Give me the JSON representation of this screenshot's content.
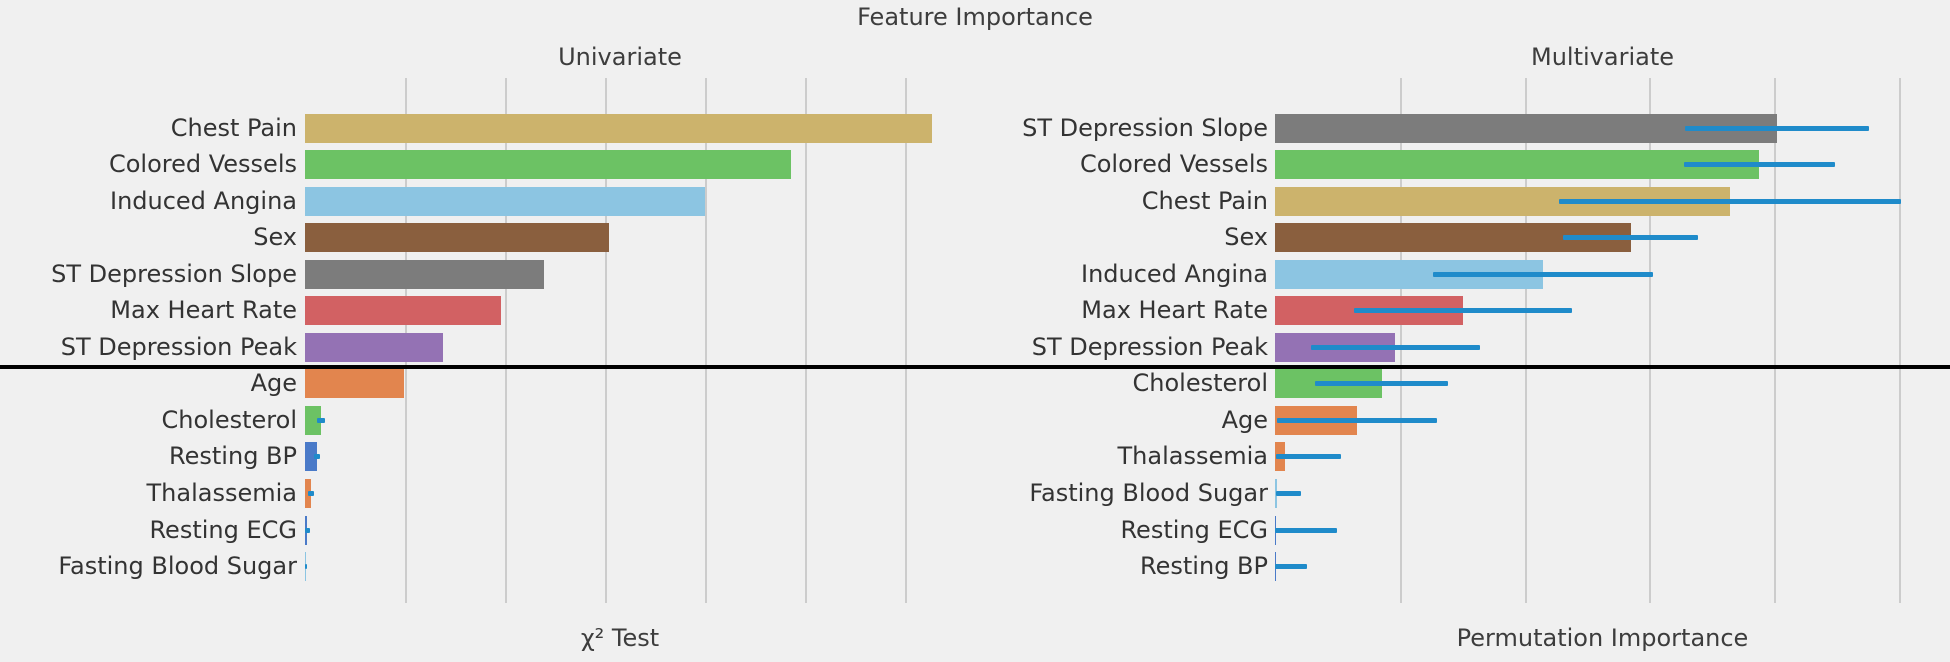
{
  "figure": {
    "title": "Feature Importance",
    "background_color": "#f0f0f0",
    "grid_color": "#cccccc",
    "text_color": "#3d3d3d",
    "separator_color": "#000000",
    "error_bar_color": "#1f8bca"
  },
  "chart_data": [
    {
      "type": "bar",
      "orientation": "horizontal",
      "title": "Univariate",
      "xlabel": "χ² Test",
      "legend": "none",
      "x_axis": {
        "tick_labels_visible": false,
        "note": "gridlines unlabeled; values estimated with one gridline interval = 10 units",
        "gridlines_at": [
          10,
          20,
          30,
          40,
          50,
          60
        ],
        "xlim": [
          0,
          63
        ]
      },
      "categories": [
        "Chest Pain",
        "Colored Vessels",
        "Induced Angina",
        "Sex",
        "ST Depression Slope",
        "Max Heart Rate",
        "ST Depression Peak",
        "Age",
        "Cholesterol",
        "Resting BP",
        "Thalassemia",
        "Resting ECG",
        "Fasting Blood Sugar"
      ],
      "values": [
        62.7,
        48.6,
        40.0,
        30.4,
        23.9,
        19.6,
        13.8,
        9.9,
        1.6,
        1.2,
        0.6,
        0.25,
        0.1
      ],
      "error_sym": [
        0,
        0,
        0,
        0,
        0,
        0,
        0,
        0,
        0.4,
        0.35,
        0.3,
        0.25,
        0.15
      ],
      "bar_colors": [
        "#ccb36c",
        "#6cc264",
        "#8cc5e2",
        "#8a5f3e",
        "#7c7c7c",
        "#d26163",
        "#9472b4",
        "#e2854e",
        "#6cc264",
        "#4a7ac8",
        "#e2854e",
        "#4a7ac8",
        "#8cc5e2"
      ],
      "separator_after_index": 6
    },
    {
      "type": "bar",
      "orientation": "horizontal",
      "title": "Multivariate",
      "xlabel": "Permutation Importance",
      "legend": "none",
      "x_axis": {
        "tick_labels_visible": false,
        "note": "gridlines unlabeled; values estimated with one gridline interval = 1 unit",
        "gridlines_at": [
          1,
          2,
          3,
          4,
          5
        ],
        "xlim": [
          0,
          5.25
        ]
      },
      "categories": [
        "ST Depression Slope",
        "Colored Vessels",
        "Chest Pain",
        "Sex",
        "Induced Angina",
        "Max Heart Rate",
        "ST Depression Peak",
        "Cholesterol",
        "Age",
        "Thalassemia",
        "Fasting Blood Sugar",
        "Resting ECG",
        "Resting BP"
      ],
      "values": [
        4.02,
        3.88,
        3.65,
        2.85,
        2.15,
        1.51,
        0.96,
        0.86,
        0.66,
        0.08,
        0.02,
        0.01,
        0.01
      ],
      "error_low": [
        3.29,
        3.28,
        2.28,
        2.31,
        1.27,
        0.63,
        0.29,
        0.32,
        0.02,
        0.01,
        0.01,
        0.0,
        0.0
      ],
      "error_high": [
        4.76,
        4.49,
        5.02,
        3.39,
        3.03,
        2.38,
        1.64,
        1.39,
        1.3,
        0.53,
        0.21,
        0.5,
        0.26
      ],
      "bar_colors": [
        "#7c7c7c",
        "#6cc264",
        "#ccb36c",
        "#8a5f3e",
        "#8cc5e2",
        "#d26163",
        "#9472b4",
        "#6cc264",
        "#e2854e",
        "#e2854e",
        "#8cc5e2",
        "#4a7ac8",
        "#4a7ac8"
      ],
      "separator_after_index": 6
    }
  ]
}
